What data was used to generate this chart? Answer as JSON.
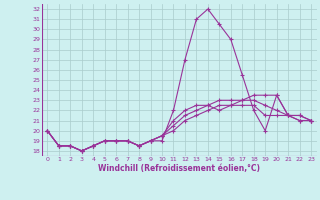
{
  "background_color": "#cef0f0",
  "grid_color": "#aacccc",
  "line_color": "#993399",
  "axis_color": "#993399",
  "xlabel": "Windchill (Refroidissement éolien,°C)",
  "xlim": [
    -0.5,
    23.5
  ],
  "ylim": [
    17.5,
    32.5
  ],
  "yticks": [
    18,
    19,
    20,
    21,
    22,
    23,
    24,
    25,
    26,
    27,
    28,
    29,
    30,
    31,
    32
  ],
  "xticks": [
    0,
    1,
    2,
    3,
    4,
    5,
    6,
    7,
    8,
    9,
    10,
    11,
    12,
    13,
    14,
    15,
    16,
    17,
    18,
    19,
    20,
    21,
    22,
    23
  ],
  "series": [
    [
      20.0,
      18.5,
      18.5,
      18.0,
      18.5,
      19.0,
      19.0,
      19.0,
      18.5,
      19.0,
      19.0,
      22.0,
      27.0,
      31.0,
      32.0,
      30.5,
      29.0,
      25.5,
      22.0,
      20.0,
      23.5,
      21.5,
      21.0,
      21.0
    ],
    [
      20.0,
      18.5,
      18.5,
      18.0,
      18.5,
      19.0,
      19.0,
      19.0,
      18.5,
      19.0,
      19.5,
      21.0,
      22.0,
      22.5,
      22.5,
      22.0,
      22.5,
      23.0,
      23.5,
      23.5,
      23.5,
      21.5,
      21.0,
      21.0
    ],
    [
      20.0,
      18.5,
      18.5,
      18.0,
      18.5,
      19.0,
      19.0,
      19.0,
      18.5,
      19.0,
      19.5,
      20.0,
      21.0,
      21.5,
      22.0,
      22.5,
      22.5,
      22.5,
      22.5,
      21.5,
      21.5,
      21.5,
      21.5,
      21.0
    ],
    [
      20.0,
      18.5,
      18.5,
      18.0,
      18.5,
      19.0,
      19.0,
      19.0,
      18.5,
      19.0,
      19.5,
      20.5,
      21.5,
      22.0,
      22.5,
      23.0,
      23.0,
      23.0,
      23.0,
      22.5,
      22.0,
      21.5,
      21.5,
      21.0
    ]
  ],
  "tick_fontsize": 4.5,
  "xlabel_fontsize": 5.5,
  "xlabel_fontweight": "bold"
}
